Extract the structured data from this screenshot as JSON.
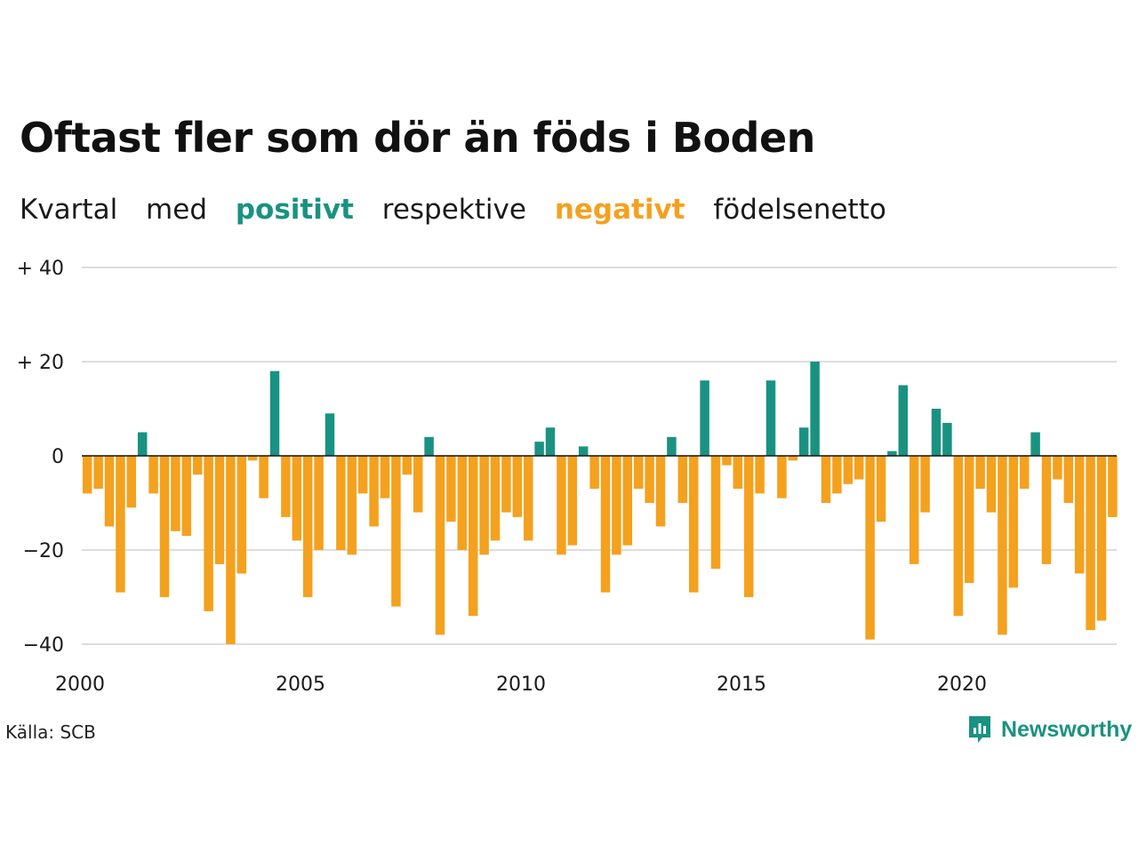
{
  "title": "Oftast fler som dör än föds i Boden",
  "subtitle": {
    "w1": "Kvartal",
    "w2": "med",
    "positive": "positivt",
    "w3": "respektive",
    "negative": "negativt",
    "w4": "födelsenetto"
  },
  "source": "Källa: SCB",
  "logo_text": "Newsworthy",
  "colors": {
    "positive": "#1a9281",
    "negative": "#f4a11e",
    "grid": "#dddddd",
    "zero": "#111111"
  },
  "chart_data": {
    "type": "bar",
    "title": "Oftast fler som dör än föds i Boden",
    "ylim": [
      -40,
      40
    ],
    "y_ticks": [
      40,
      20,
      0,
      -20,
      -40
    ],
    "y_tick_labels": [
      "+ 40",
      "+ 20",
      "0",
      "−20",
      "−40"
    ],
    "x_tick_labels": [
      "2000",
      "2005",
      "2010",
      "2015",
      "2020"
    ],
    "start": "2000 Q1",
    "frequency": "quarterly",
    "values": [
      -8,
      -7,
      -15,
      -29,
      -11,
      5,
      -8,
      -30,
      -16,
      -17,
      -4,
      -33,
      -23,
      -40,
      -25,
      -1,
      -9,
      18,
      -13,
      -18,
      -30,
      -20,
      9,
      -20,
      -21,
      -8,
      -15,
      -9,
      -32,
      -4,
      -12,
      4,
      -38,
      -14,
      -20,
      -34,
      -21,
      -18,
      -12,
      -13,
      -18,
      3,
      6,
      -21,
      -19,
      2,
      -7,
      -29,
      -21,
      -19,
      -7,
      -10,
      -15,
      4,
      -10,
      -29,
      16,
      -24,
      -2,
      -7,
      -30,
      -8,
      16,
      -9,
      -1,
      6,
      20,
      -10,
      -8,
      -6,
      -5,
      -39,
      -14,
      1,
      15,
      -23,
      -12,
      10,
      7,
      -34,
      -27,
      -7,
      -12,
      -38,
      -28,
      -7,
      5,
      -23,
      -5,
      -10,
      -25,
      -37,
      -35,
      -13
    ],
    "grid": true,
    "legend": "none"
  }
}
